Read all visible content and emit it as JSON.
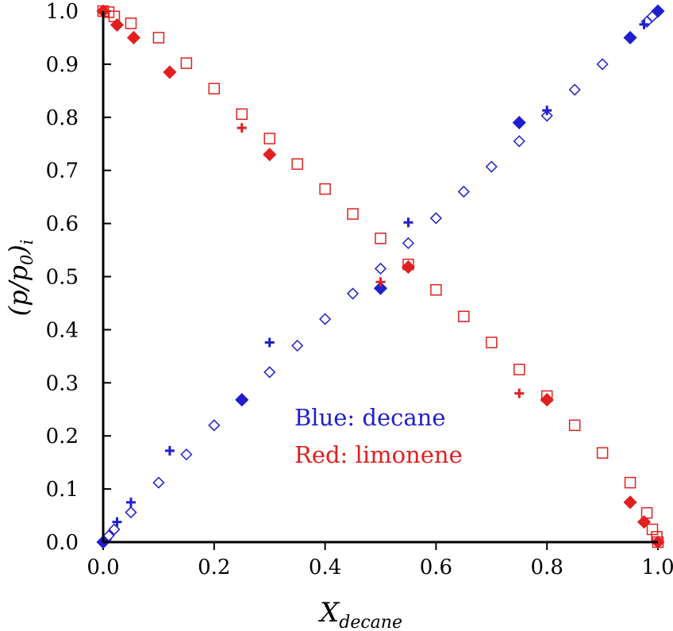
{
  "chart_data": {
    "type": "scatter",
    "title": "",
    "xlabel": {
      "main": "X",
      "sub": "decane"
    },
    "ylabel": {
      "prefix": "(p/p",
      "sub0": "0",
      "close": ")",
      "subi": "i"
    },
    "xlim": [
      0,
      1
    ],
    "ylim": [
      0,
      1
    ],
    "x_ticks": [
      "0.0",
      "0.2",
      "0.4",
      "0.6",
      "0.8",
      "1.0"
    ],
    "y_ticks": [
      "0.0",
      "0.1",
      "0.2",
      "0.3",
      "0.4",
      "0.5",
      "0.6",
      "0.7",
      "0.8",
      "0.9",
      "1.0"
    ],
    "grid": false,
    "annotations": {
      "blue": {
        "text": "Blue: decane",
        "color": "#1f1fcf"
      },
      "red": {
        "text": "Red: limonene",
        "color": "#e02020"
      }
    },
    "colors": {
      "blue": "#1f1fcf",
      "red": "#e02020"
    },
    "series": [
      {
        "color": "blue",
        "marker": "open-diamond",
        "points": [
          [
            0.005,
            0.005
          ],
          [
            0.01,
            0.012
          ],
          [
            0.02,
            0.024
          ],
          [
            0.05,
            0.056
          ],
          [
            0.1,
            0.112
          ],
          [
            0.15,
            0.165
          ],
          [
            0.2,
            0.22
          ],
          [
            0.3,
            0.32
          ],
          [
            0.35,
            0.37
          ],
          [
            0.4,
            0.42
          ],
          [
            0.45,
            0.468
          ],
          [
            0.5,
            0.515
          ],
          [
            0.55,
            0.563
          ],
          [
            0.6,
            0.61
          ],
          [
            0.65,
            0.66
          ],
          [
            0.7,
            0.707
          ],
          [
            0.75,
            0.755
          ],
          [
            0.8,
            0.803
          ],
          [
            0.85,
            0.852
          ],
          [
            0.9,
            0.9
          ],
          [
            0.95,
            0.95
          ],
          [
            0.98,
            0.98
          ],
          [
            0.99,
            0.99
          ],
          [
            1.0,
            1.0
          ]
        ]
      },
      {
        "color": "blue",
        "marker": "filled-diamond",
        "points": [
          [
            0.0,
            0.0
          ],
          [
            0.25,
            0.268
          ],
          [
            0.5,
            0.478
          ],
          [
            0.75,
            0.79
          ],
          [
            0.95,
            0.95
          ],
          [
            1.0,
            1.0
          ]
        ]
      },
      {
        "color": "blue",
        "marker": "plus",
        "points": [
          [
            0.025,
            0.038
          ],
          [
            0.05,
            0.075
          ],
          [
            0.12,
            0.172
          ],
          [
            0.3,
            0.376
          ],
          [
            0.55,
            0.602
          ],
          [
            0.8,
            0.813
          ],
          [
            0.975,
            0.975
          ]
        ]
      },
      {
        "color": "red",
        "marker": "open-square",
        "points": [
          [
            0.0,
            1.0
          ],
          [
            0.01,
            0.998
          ],
          [
            0.02,
            0.99
          ],
          [
            0.05,
            0.977
          ],
          [
            0.1,
            0.95
          ],
          [
            0.15,
            0.902
          ],
          [
            0.2,
            0.854
          ],
          [
            0.25,
            0.806
          ],
          [
            0.3,
            0.76
          ],
          [
            0.35,
            0.712
          ],
          [
            0.4,
            0.665
          ],
          [
            0.45,
            0.618
          ],
          [
            0.5,
            0.572
          ],
          [
            0.55,
            0.523
          ],
          [
            0.6,
            0.475
          ],
          [
            0.65,
            0.425
          ],
          [
            0.7,
            0.376
          ],
          [
            0.75,
            0.325
          ],
          [
            0.8,
            0.275
          ],
          [
            0.85,
            0.22
          ],
          [
            0.9,
            0.168
          ],
          [
            0.95,
            0.112
          ],
          [
            0.98,
            0.055
          ],
          [
            0.99,
            0.024
          ],
          [
            0.998,
            0.01
          ],
          [
            1.0,
            0.0
          ]
        ]
      },
      {
        "color": "red",
        "marker": "filled-diamond",
        "points": [
          [
            0.0,
            1.0
          ],
          [
            0.025,
            0.974
          ],
          [
            0.055,
            0.95
          ],
          [
            0.12,
            0.885
          ],
          [
            0.3,
            0.73
          ],
          [
            0.55,
            0.518
          ],
          [
            0.8,
            0.268
          ],
          [
            0.95,
            0.075
          ],
          [
            0.975,
            0.038
          ],
          [
            1.0,
            0.0
          ]
        ]
      },
      {
        "color": "red",
        "marker": "plus",
        "points": [
          [
            0.25,
            0.78
          ],
          [
            0.5,
            0.49
          ],
          [
            0.75,
            0.28
          ]
        ]
      }
    ]
  }
}
